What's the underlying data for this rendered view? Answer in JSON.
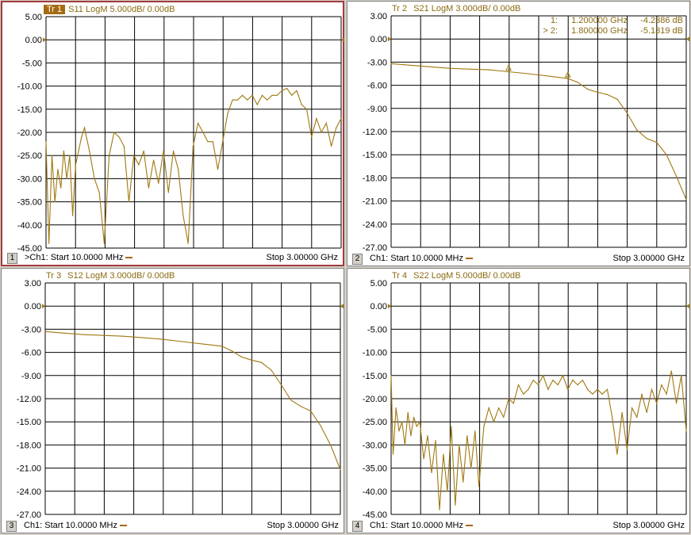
{
  "panels": [
    {
      "id": "1",
      "trace": "Tr 1",
      "param": "S11 LogM 5.000dB/  0.00dB",
      "active": true,
      "start_label": ">Ch1: Start  10.0000 MHz",
      "stop_label": "Stop  3.00000 GHz",
      "ylabels": [
        "5.00",
        "0.00",
        "-5.00",
        "-10.00",
        "-15.00",
        "-20.00",
        "-25.00",
        "-30.00",
        "-35.00",
        "-40.00",
        "-45.00"
      ],
      "ylim": [
        -45,
        5
      ],
      "ref": 0
    },
    {
      "id": "2",
      "trace": "Tr  2",
      "param": "S21 LogM 3.000dB/  0.00dB",
      "active": false,
      "start_label": "Ch1: Start  10.0000 MHz",
      "stop_label": "Stop  3.00000 GHz",
      "ylabels": [
        "3.00",
        "0.00",
        "-3.00",
        "-6.00",
        "-9.00",
        "-12.00",
        "-15.00",
        "-18.00",
        "-21.00",
        "-24.00",
        "-27.00"
      ],
      "ylim": [
        -27,
        3
      ],
      "ref": 0
    },
    {
      "id": "3",
      "trace": "Tr  3",
      "param": "S12 LogM 3.000dB/  0.00dB",
      "active": false,
      "start_label": "Ch1: Start  10.0000 MHz",
      "stop_label": "Stop  3.00000 GHz",
      "ylabels": [
        "3.00",
        "0.00",
        "-3.00",
        "-6.00",
        "-9.00",
        "-12.00",
        "-15.00",
        "-18.00",
        "-21.00",
        "-24.00",
        "-27.00"
      ],
      "ylim": [
        -27,
        3
      ],
      "ref": 0
    },
    {
      "id": "4",
      "trace": "Tr  4",
      "param": "S22 LogM 5.000dB/  0.00dB",
      "active": false,
      "start_label": "Ch1: Start  10.0000 MHz",
      "stop_label": "Stop  3.00000 GHz",
      "ylabels": [
        "5.00",
        "0.00",
        "-5.00",
        "-10.00",
        "-15.00",
        "-20.00",
        "-25.00",
        "-30.00",
        "-35.00",
        "-40.00",
        "-45.00"
      ],
      "ylim": [
        -45,
        5
      ],
      "ref": 0
    }
  ],
  "markers": [
    {
      "label": "1:",
      "freq": "1.200000 GHz",
      "value": "-4.2386 dB"
    },
    {
      "label": "> 2:",
      "freq": "1.800000 GHz",
      "value": "-5.1319 dB"
    }
  ],
  "colors": {
    "trace": "#a0780f",
    "grid": "#000000",
    "active_border": "#a23c3c"
  },
  "chart_data": [
    {
      "type": "line",
      "title": "S11 LogM",
      "xlabel": "",
      "ylabel": "",
      "xlim_ghz": [
        0.01,
        3.0
      ],
      "ylim": [
        -45,
        5
      ],
      "grid": true,
      "series": [
        {
          "name": "S11",
          "x": [
            0.01,
            0.04,
            0.07,
            0.1,
            0.13,
            0.16,
            0.19,
            0.22,
            0.25,
            0.28,
            0.31,
            0.34,
            0.37,
            0.4,
            0.45,
            0.5,
            0.55,
            0.6,
            0.65,
            0.7,
            0.75,
            0.8,
            0.85,
            0.9,
            0.95,
            1.0,
            1.05,
            1.1,
            1.15,
            1.2,
            1.25,
            1.3,
            1.35,
            1.4,
            1.45,
            1.5,
            1.55,
            1.6,
            1.65,
            1.7,
            1.75,
            1.8,
            1.85,
            1.9,
            1.95,
            2.0,
            2.05,
            2.1,
            2.15,
            2.2,
            2.25,
            2.3,
            2.35,
            2.4,
            2.45,
            2.5,
            2.55,
            2.6,
            2.65,
            2.7,
            2.75,
            2.8,
            2.85,
            2.9,
            2.95,
            3.0
          ],
          "y": [
            -22,
            -44,
            -25,
            -35,
            -28,
            -32,
            -24,
            -30,
            -25,
            -38,
            -27,
            -24,
            -21,
            -19,
            -24,
            -30,
            -33,
            -44,
            -25,
            -20,
            -21,
            -23,
            -35,
            -25,
            -27,
            -24,
            -32,
            -26,
            -31,
            -24,
            -33,
            -24,
            -28,
            -38,
            -44,
            -23,
            -18,
            -20,
            -22,
            -22,
            -28,
            -22,
            -16,
            -13,
            -13,
            -12,
            -13,
            -12,
            -14,
            -12,
            -13,
            -12,
            -12,
            -11,
            -10.5,
            -12,
            -11,
            -14,
            -15,
            -21,
            -17,
            -20,
            -18,
            -23,
            -19,
            -17
          ]
        }
      ]
    },
    {
      "type": "line",
      "title": "S21 LogM",
      "xlabel": "",
      "ylabel": "",
      "xlim_ghz": [
        0.01,
        3.0
      ],
      "ylim": [
        -27,
        3
      ],
      "grid": true,
      "series": [
        {
          "name": "S21",
          "x": [
            0.01,
            0.2,
            0.4,
            0.6,
            0.8,
            1.0,
            1.2,
            1.4,
            1.6,
            1.8,
            1.9,
            2.0,
            2.1,
            2.2,
            2.3,
            2.4,
            2.5,
            2.6,
            2.7,
            2.8,
            2.9,
            3.0
          ],
          "y": [
            -3.2,
            -3.4,
            -3.6,
            -3.8,
            -3.9,
            -4.0,
            -4.24,
            -4.5,
            -4.8,
            -5.13,
            -5.6,
            -6.5,
            -6.9,
            -7.2,
            -7.8,
            -9.6,
            -11.8,
            -12.9,
            -13.4,
            -15.0,
            -17.8,
            -20.8
          ]
        }
      ]
    },
    {
      "type": "line",
      "title": "S12 LogM",
      "xlabel": "",
      "ylabel": "",
      "xlim_ghz": [
        0.01,
        3.0
      ],
      "ylim": [
        -27,
        3
      ],
      "grid": true,
      "series": [
        {
          "name": "S12",
          "x": [
            0.01,
            0.2,
            0.4,
            0.6,
            0.8,
            1.0,
            1.2,
            1.4,
            1.6,
            1.8,
            1.9,
            2.0,
            2.1,
            2.2,
            2.3,
            2.4,
            2.5,
            2.6,
            2.7,
            2.8,
            2.9,
            3.0
          ],
          "y": [
            -3.3,
            -3.5,
            -3.7,
            -3.8,
            -3.9,
            -4.1,
            -4.3,
            -4.6,
            -4.9,
            -5.2,
            -5.8,
            -6.6,
            -7.0,
            -7.3,
            -8.3,
            -10.2,
            -12.2,
            -13.0,
            -13.6,
            -15.5,
            -18.0,
            -21.2
          ]
        }
      ]
    },
    {
      "type": "line",
      "title": "S22 LogM",
      "xlabel": "",
      "ylabel": "",
      "xlim_ghz": [
        0.01,
        3.0
      ],
      "ylim": [
        -45,
        5
      ],
      "grid": true,
      "series": [
        {
          "name": "S22",
          "x": [
            0.01,
            0.03,
            0.06,
            0.09,
            0.12,
            0.15,
            0.18,
            0.21,
            0.24,
            0.27,
            0.3,
            0.34,
            0.38,
            0.42,
            0.46,
            0.5,
            0.54,
            0.58,
            0.62,
            0.66,
            0.7,
            0.74,
            0.78,
            0.82,
            0.86,
            0.9,
            0.95,
            1.0,
            1.05,
            1.1,
            1.15,
            1.2,
            1.25,
            1.3,
            1.35,
            1.4,
            1.45,
            1.5,
            1.55,
            1.6,
            1.65,
            1.7,
            1.75,
            1.8,
            1.85,
            1.9,
            1.95,
            2.0,
            2.05,
            2.1,
            2.15,
            2.2,
            2.25,
            2.3,
            2.35,
            2.4,
            2.45,
            2.5,
            2.55,
            2.6,
            2.65,
            2.7,
            2.75,
            2.8,
            2.85,
            2.9,
            2.95,
            3.0
          ],
          "y": [
            -15,
            -32,
            -22,
            -27,
            -25,
            -30,
            -23,
            -28,
            -24,
            -26,
            -25,
            -33,
            -28,
            -36,
            -29,
            -44,
            -32,
            -40,
            -26,
            -43,
            -30,
            -38,
            -28,
            -35,
            -27,
            -39,
            -26,
            -22,
            -25,
            -22,
            -24,
            -20,
            -21,
            -17,
            -19,
            -18,
            -16,
            -17,
            -15,
            -18,
            -16,
            -17,
            -15,
            -18,
            -16,
            -17,
            -16,
            -18,
            -19,
            -18,
            -19,
            -18,
            -24,
            -32,
            -23,
            -31,
            -22,
            -24,
            -19,
            -23,
            -18,
            -21,
            -17,
            -19,
            -14,
            -21,
            -15,
            -27
          ]
        }
      ]
    }
  ]
}
